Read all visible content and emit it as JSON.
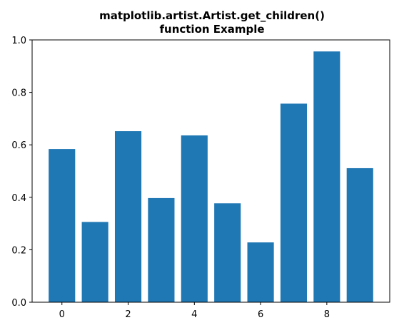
{
  "chart_data": {
    "type": "bar",
    "title_lines": [
      "matplotlib.artist.Artist.get_children()",
      "function Example"
    ],
    "xlabel": "",
    "ylabel": "",
    "x": [
      0,
      1,
      2,
      3,
      4,
      5,
      6,
      7,
      8,
      9
    ],
    "values": [
      0.584,
      0.306,
      0.652,
      0.397,
      0.636,
      0.377,
      0.228,
      0.757,
      0.956,
      0.511
    ],
    "xlim": [
      -0.9,
      9.9
    ],
    "ylim": [
      0.0,
      1.0
    ],
    "x_ticks": [
      0,
      2,
      4,
      6,
      8
    ],
    "x_tick_labels": [
      "0",
      "2",
      "4",
      "6",
      "8"
    ],
    "y_ticks": [
      0.0,
      0.2,
      0.4,
      0.6,
      0.8,
      1.0
    ],
    "y_tick_labels": [
      "0.0",
      "0.2",
      "0.4",
      "0.6",
      "0.8",
      "1.0"
    ],
    "bar_width": 0.8,
    "bar_color": "#1f77b4",
    "grid": false,
    "legend": "none"
  }
}
